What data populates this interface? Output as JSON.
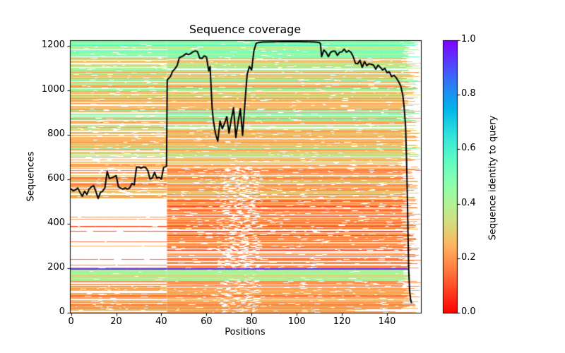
{
  "figure": {
    "background": "#ffffff",
    "axis_color": "#000000"
  },
  "chart_data": {
    "type": "heatmap",
    "title": "Sequence coverage",
    "xlabel": "Positions",
    "ylabel": "Sequences",
    "xlim": [
      -0.5,
      155
    ],
    "ylim": [
      0,
      1226
    ],
    "grid": false,
    "xticks": {
      "values": [
        0,
        20,
        40,
        60,
        80,
        100,
        120,
        140
      ],
      "labels": [
        "0",
        "20",
        "40",
        "60",
        "80",
        "100",
        "120",
        "140"
      ]
    },
    "yticks": {
      "values": [
        0,
        200,
        400,
        600,
        800,
        1000,
        1200
      ],
      "labels": [
        "0",
        "200",
        "400",
        "600",
        "800",
        "1000",
        "1200"
      ]
    },
    "colorbar": {
      "label": "Sequence identity to query",
      "min": 0.0,
      "max": 1.0,
      "colormap": "rainbow reversed (0.0=red, 0.2=orange, 0.4=yellow-green, 0.6=spring-green, 0.8=blue, 1.0=violet)",
      "ticks": {
        "values": [
          0.0,
          0.2,
          0.4,
          0.6,
          0.8,
          1.0
        ],
        "labels": [
          "0.0",
          "0.2",
          "0.4",
          "0.6",
          "0.8",
          "1.0"
        ]
      }
    },
    "coverage_line": {
      "label": "number of sequences covering each position",
      "color": "#000000",
      "points": [
        [
          0,
          557
        ],
        [
          1,
          548
        ],
        [
          2,
          553
        ],
        [
          3,
          561
        ],
        [
          4,
          541
        ],
        [
          5,
          524
        ],
        [
          6,
          547
        ],
        [
          7,
          532
        ],
        [
          8,
          557
        ],
        [
          9,
          566
        ],
        [
          10,
          572
        ],
        [
          11,
          546
        ],
        [
          12,
          514
        ],
        [
          13,
          541
        ],
        [
          14,
          547
        ],
        [
          15,
          562
        ],
        [
          16,
          636
        ],
        [
          17,
          604
        ],
        [
          18,
          607
        ],
        [
          19,
          612
        ],
        [
          20,
          617
        ],
        [
          21,
          567
        ],
        [
          22,
          560
        ],
        [
          23,
          556
        ],
        [
          24,
          562
        ],
        [
          25,
          556
        ],
        [
          26,
          562
        ],
        [
          27,
          582
        ],
        [
          28,
          576
        ],
        [
          29,
          655
        ],
        [
          30,
          656
        ],
        [
          31,
          650
        ],
        [
          32,
          656
        ],
        [
          33,
          654
        ],
        [
          34,
          640
        ],
        [
          35,
          601
        ],
        [
          36,
          606
        ],
        [
          37,
          632
        ],
        [
          38,
          606
        ],
        [
          39,
          609
        ],
        [
          40,
          601
        ],
        [
          41,
          654
        ],
        [
          42,
          657
        ],
        [
          42.3,
          660
        ],
        [
          42.6,
          1046
        ],
        [
          43,
          1052
        ],
        [
          44,
          1062
        ],
        [
          45,
          1087
        ],
        [
          46,
          1097
        ],
        [
          47,
          1112
        ],
        [
          48,
          1148
        ],
        [
          49,
          1152
        ],
        [
          50,
          1158
        ],
        [
          51,
          1166
        ],
        [
          52,
          1161
        ],
        [
          53,
          1166
        ],
        [
          54,
          1174
        ],
        [
          55,
          1178
        ],
        [
          56,
          1175
        ],
        [
          57,
          1146
        ],
        [
          58,
          1144
        ],
        [
          59,
          1156
        ],
        [
          60,
          1150
        ],
        [
          61,
          1088
        ],
        [
          61.6,
          1108
        ],
        [
          62.5,
          922
        ],
        [
          63,
          868
        ],
        [
          64,
          806
        ],
        [
          65,
          772
        ],
        [
          66,
          862
        ],
        [
          67,
          828
        ],
        [
          68,
          852
        ],
        [
          69,
          882
        ],
        [
          70,
          808
        ],
        [
          71,
          872
        ],
        [
          72,
          922
        ],
        [
          73,
          788
        ],
        [
          74,
          858
        ],
        [
          75,
          918
        ],
        [
          76,
          798
        ],
        [
          77,
          938
        ],
        [
          78,
          1072
        ],
        [
          79,
          1108
        ],
        [
          80,
          1092
        ],
        [
          81,
          1178
        ],
        [
          82,
          1212
        ],
        [
          83,
          1216
        ],
        [
          85,
          1218
        ],
        [
          90,
          1219
        ],
        [
          95,
          1220
        ],
        [
          100,
          1220
        ],
        [
          105,
          1219
        ],
        [
          108,
          1218
        ],
        [
          110,
          1216
        ],
        [
          110.5,
          1210
        ],
        [
          111,
          1152
        ],
        [
          112,
          1182
        ],
        [
          113,
          1172
        ],
        [
          114,
          1152
        ],
        [
          115,
          1172
        ],
        [
          116,
          1177
        ],
        [
          117,
          1177
        ],
        [
          118,
          1158
        ],
        [
          119,
          1172
        ],
        [
          120,
          1174
        ],
        [
          121,
          1186
        ],
        [
          122,
          1172
        ],
        [
          123,
          1179
        ],
        [
          124,
          1172
        ],
        [
          125,
          1152
        ],
        [
          126,
          1122
        ],
        [
          127,
          1120
        ],
        [
          128,
          1136
        ],
        [
          129,
          1104
        ],
        [
          130,
          1130
        ],
        [
          131,
          1112
        ],
        [
          132,
          1120
        ],
        [
          133,
          1118
        ],
        [
          134,
          1114
        ],
        [
          135,
          1096
        ],
        [
          136,
          1114
        ],
        [
          137,
          1104
        ],
        [
          138,
          1092
        ],
        [
          139,
          1100
        ],
        [
          140,
          1080
        ],
        [
          141,
          1084
        ],
        [
          142,
          1062
        ],
        [
          143,
          1068
        ],
        [
          144,
          1058
        ],
        [
          145,
          1042
        ],
        [
          146,
          1022
        ],
        [
          147,
          978
        ],
        [
          147.6,
          920
        ],
        [
          148.2,
          840
        ],
        [
          148.6,
          700
        ],
        [
          149,
          520
        ],
        [
          149.3,
          340
        ],
        [
          149.6,
          190
        ],
        [
          150,
          100
        ],
        [
          150.4,
          60
        ],
        [
          150.8,
          45
        ]
      ]
    },
    "heatmap": {
      "description": "MSA rows (one horizontal line per sequence) colored by identity to query; white = no coverage",
      "split_position": 42.5,
      "right_edge_range": [
        146,
        155
      ],
      "bottom_short_rows": {
        "seq_below": 25,
        "end_range": [
          118,
          150
        ]
      },
      "streak_zone": {
        "positions": [
          61,
          80
        ],
        "below_seq": 660
      },
      "bands": [
        {
          "seq": [
            0,
            12
          ],
          "identities": [
            0.18,
            0.22,
            0.2
          ],
          "left_density": 0.6,
          "right_density": 0.85,
          "gap": 0.3
        },
        {
          "seq": [
            12,
            142
          ],
          "identities": [
            0.15,
            0.18,
            0.2,
            0.22,
            0.25,
            0.2,
            0.28
          ],
          "left_density": 0.75,
          "right_density": 0.95,
          "gap": 0.28
        },
        {
          "seq": [
            142,
            148
          ],
          "identities": [
            0.5
          ],
          "left_density": 1,
          "right_density": 1,
          "gap": 0.04
        },
        {
          "seq": [
            148,
            194
          ],
          "identities": [
            0.36,
            0.4,
            0.43,
            0.38,
            0.33,
            0.45,
            0.3
          ],
          "left_density": 0.98,
          "right_density": 0.98,
          "gap": 0.06,
          "end": [
            147,
            151
          ]
        },
        {
          "seq": [
            194,
            201
          ],
          "identities": [
            0.95
          ],
          "left_density": 1,
          "right_density": 1,
          "gap": 0,
          "end": [
            149,
            150
          ]
        },
        {
          "seq": [
            201,
            258
          ],
          "identities": [
            0.17,
            0.2,
            0.23,
            0.15
          ],
          "left_density": 0.22,
          "right_density": 0.9,
          "gap": 0.3
        },
        {
          "seq": [
            258,
            515
          ],
          "identities": [
            0.16,
            0.19,
            0.22,
            0.24,
            0.14,
            0.08
          ],
          "left_density": 0.1,
          "right_density": 0.88,
          "gap": 0.3
        },
        {
          "seq": [
            515,
            658
          ],
          "identities": [
            0.18,
            0.2,
            0.24,
            0.28,
            0.3,
            0.16
          ],
          "left_density": 0.6,
          "right_density": 0.9,
          "gap": 0.3
        },
        {
          "seq": [
            658,
            990
          ],
          "identities": [
            0.22,
            0.25,
            0.28,
            0.32,
            0.35,
            0.24,
            0.3,
            0.2,
            0.5
          ],
          "left_density": 0.82,
          "right_density": 0.93,
          "gap": 0.22
        },
        {
          "seq": [
            990,
            1148
          ],
          "identities": [
            0.26,
            0.3,
            0.34,
            0.4,
            0.45,
            0.28,
            0.22,
            0.38,
            0.55
          ],
          "left_density": 0.88,
          "right_density": 0.95,
          "gap": 0.2
        },
        {
          "seq": [
            1148,
            1200
          ],
          "identities": [
            0.36,
            0.4,
            0.45,
            0.5,
            0.55,
            0.38
          ],
          "left_density": 0.92,
          "right_density": 0.96,
          "gap": 0.15
        },
        {
          "seq": [
            1200,
            1226
          ],
          "identities": [
            0.48,
            0.55,
            0.58,
            0.45,
            0.42
          ],
          "left_density": 0.95,
          "right_density": 0.97,
          "gap": 0.12
        }
      ]
    }
  }
}
